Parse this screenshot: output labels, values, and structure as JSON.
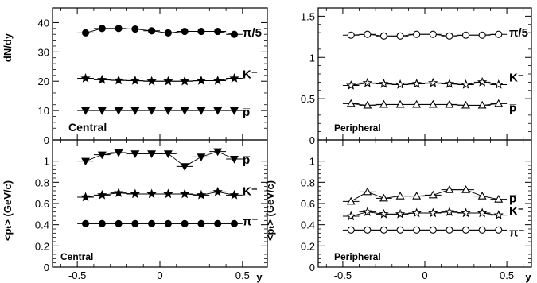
{
  "figure": {
    "x_axis_label": "y",
    "x_tick_labels": [
      "-0.5",
      "0",
      "0.5"
    ],
    "x_range": [
      -0.65,
      0.65
    ]
  },
  "chart_data": [
    {
      "type": "scatter",
      "panel": "top-left",
      "region_label": "Central",
      "ylabel": "dN/dy",
      "ylim": [
        0,
        45
      ],
      "yticks": [
        0,
        10,
        20,
        30,
        40
      ],
      "x": [
        -0.45,
        -0.35,
        -0.25,
        -0.15,
        -0.05,
        0.05,
        0.15,
        0.25,
        0.35,
        0.45
      ],
      "series": [
        {
          "name": "π/5",
          "marker": "circle-filled",
          "values": [
            36.5,
            38.0,
            38.0,
            37.8,
            37.2,
            36.5,
            37.0,
            37.0,
            37.0,
            36.0
          ]
        },
        {
          "name": "K⁻",
          "marker": "star-filled",
          "values": [
            21.0,
            20.5,
            20.3,
            20.2,
            20.0,
            20.0,
            20.0,
            20.2,
            20.2,
            21.0
          ]
        },
        {
          "name": "p̅",
          "marker": "triangle-down-filled",
          "values": [
            10.0,
            10.0,
            10.0,
            10.0,
            10.0,
            10.0,
            10.0,
            10.0,
            10.0,
            10.0
          ]
        }
      ]
    },
    {
      "type": "scatter",
      "panel": "top-right",
      "region_label": "Peripheral",
      "ylabel": "",
      "ylim": [
        0,
        1.6
      ],
      "yticks": [
        0,
        0.5,
        1,
        1.5
      ],
      "ytick_labels": [
        "0",
        "0.5",
        "1",
        "1.5"
      ],
      "x": [
        -0.45,
        -0.35,
        -0.25,
        -0.15,
        -0.05,
        0.05,
        0.15,
        0.25,
        0.35,
        0.45
      ],
      "series": [
        {
          "name": "π/5",
          "marker": "circle-open",
          "values": [
            1.27,
            1.28,
            1.26,
            1.26,
            1.28,
            1.28,
            1.26,
            1.27,
            1.27,
            1.28
          ]
        },
        {
          "name": "K⁻",
          "marker": "star-open",
          "values": [
            0.66,
            0.69,
            0.68,
            0.67,
            0.68,
            0.69,
            0.68,
            0.67,
            0.7,
            0.67
          ]
        },
        {
          "name": "p̅",
          "marker": "triangle-up-open",
          "values": [
            0.44,
            0.42,
            0.43,
            0.43,
            0.43,
            0.43,
            0.43,
            0.42,
            0.42,
            0.44
          ]
        }
      ]
    },
    {
      "type": "scatter",
      "panel": "bottom-left",
      "region_label": "Central",
      "ylabel": "<pₜ> (GeV/c)",
      "ylim": [
        0,
        1.2
      ],
      "yticks": [
        0,
        0.2,
        0.4,
        0.6,
        0.8,
        1.0
      ],
      "ytick_labels": [
        "0",
        "0.2",
        "0.4",
        "0.6",
        "0.8",
        "1"
      ],
      "x": [
        -0.45,
        -0.35,
        -0.25,
        -0.15,
        -0.05,
        0.05,
        0.15,
        0.25,
        0.35,
        0.45
      ],
      "series": [
        {
          "name": "p̅",
          "marker": "triangle-down-filled",
          "values": [
            1.0,
            1.06,
            1.08,
            1.07,
            1.07,
            1.07,
            0.95,
            1.04,
            1.09,
            1.02
          ]
        },
        {
          "name": "K⁻",
          "marker": "star-filled",
          "values": [
            0.66,
            0.68,
            0.7,
            0.69,
            0.69,
            0.69,
            0.69,
            0.68,
            0.71,
            0.68
          ]
        },
        {
          "name": "π⁻",
          "marker": "circle-filled",
          "values": [
            0.41,
            0.41,
            0.41,
            0.41,
            0.41,
            0.41,
            0.41,
            0.41,
            0.41,
            0.41
          ]
        }
      ]
    },
    {
      "type": "scatter",
      "panel": "bottom-right",
      "region_label": "Peripheral",
      "ylabel": "<pₜ> (GeV/c)",
      "ylim": [
        0,
        1.2
      ],
      "yticks": [
        0,
        0.2,
        0.4,
        0.6,
        0.8,
        1.0
      ],
      "ytick_labels": [
        "0",
        "0.2",
        "0.4",
        "0.6",
        "0.8",
        "1"
      ],
      "x": [
        -0.45,
        -0.35,
        -0.25,
        -0.15,
        -0.05,
        0.05,
        0.15,
        0.25,
        0.35,
        0.45
      ],
      "series": [
        {
          "name": "p̅",
          "marker": "triangle-up-open",
          "values": [
            0.62,
            0.71,
            0.65,
            0.67,
            0.67,
            0.68,
            0.73,
            0.73,
            0.67,
            0.64
          ]
        },
        {
          "name": "K⁻",
          "marker": "star-open",
          "values": [
            0.48,
            0.52,
            0.5,
            0.5,
            0.51,
            0.51,
            0.52,
            0.51,
            0.51,
            0.49
          ]
        },
        {
          "name": "π⁻",
          "marker": "circle-open",
          "values": [
            0.35,
            0.35,
            0.35,
            0.35,
            0.35,
            0.35,
            0.35,
            0.35,
            0.35,
            0.35
          ]
        }
      ]
    }
  ]
}
